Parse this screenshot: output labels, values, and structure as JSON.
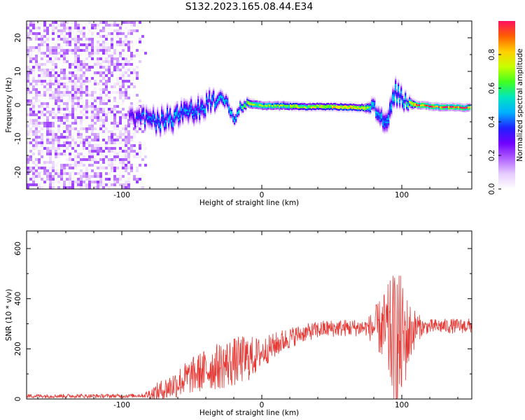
{
  "title": "S132.2023.165.08.44.E34",
  "colors": {
    "snr_line": "#e53935",
    "colormap": [
      "#ffffff",
      "#e6ccff",
      "#b060ff",
      "#7000ff",
      "#2020ff",
      "#00b0ff",
      "#00e5c0",
      "#40ff20",
      "#c8ff00",
      "#ffd000",
      "#ff6000",
      "#ff1060"
    ]
  },
  "chart_data": [
    {
      "type": "heatmap",
      "xlabel": "Height of straight line (km)",
      "ylabel": "Frequency (Hz)",
      "xlim": [
        -168,
        150
      ],
      "ylim": [
        -25,
        25
      ],
      "x_ticks": [
        "-100",
        "0",
        "100"
      ],
      "x_tick_values": [
        -100,
        0,
        100
      ],
      "y_ticks": [
        "-20",
        "-10",
        "0",
        "10",
        "20"
      ],
      "y_tick_values": [
        -20,
        -10,
        0,
        10,
        20
      ],
      "colorbar": {
        "label": "Normalized spectral amplitude",
        "range": [
          0,
          1
        ],
        "ticks": [
          "0.0",
          "0.2",
          "0.4",
          "0.6",
          "0.8"
        ],
        "tick_values": [
          0.0,
          0.2,
          0.4,
          0.6,
          0.8
        ]
      },
      "noise_region_x": [
        -168,
        -82
      ],
      "ridge": [
        {
          "x": -95,
          "freq": -4,
          "amp": 0.3,
          "spread": 2.5
        },
        {
          "x": -85,
          "freq": -4,
          "amp": 0.4,
          "spread": 2.5
        },
        {
          "x": -75,
          "freq": -5,
          "amp": 0.45,
          "spread": 3
        },
        {
          "x": -65,
          "freq": -4,
          "amp": 0.45,
          "spread": 3
        },
        {
          "x": -55,
          "freq": -3,
          "amp": 0.45,
          "spread": 3
        },
        {
          "x": -45,
          "freq": -1,
          "amp": 0.45,
          "spread": 3
        },
        {
          "x": -38,
          "freq": 1,
          "amp": 0.45,
          "spread": 2.5
        },
        {
          "x": -30,
          "freq": 1.5,
          "amp": 0.5,
          "spread": 2
        },
        {
          "x": -25,
          "freq": 0,
          "amp": 0.5,
          "spread": 1.8
        },
        {
          "x": -20,
          "freq": -4,
          "amp": 0.5,
          "spread": 1.6
        },
        {
          "x": -16,
          "freq": -1,
          "amp": 0.55,
          "spread": 1.5
        },
        {
          "x": -10,
          "freq": 0.5,
          "amp": 0.75,
          "spread": 1.2
        },
        {
          "x": 0,
          "freq": -0.3,
          "amp": 0.7,
          "spread": 1.1
        },
        {
          "x": 15,
          "freq": -0.2,
          "amp": 0.7,
          "spread": 1.1
        },
        {
          "x": 30,
          "freq": -0.5,
          "amp": 0.75,
          "spread": 1
        },
        {
          "x": 45,
          "freq": -0.5,
          "amp": 0.8,
          "spread": 1
        },
        {
          "x": 60,
          "freq": -0.6,
          "amp": 0.85,
          "spread": 1
        },
        {
          "x": 72,
          "freq": -0.8,
          "amp": 0.8,
          "spread": 1
        },
        {
          "x": 80,
          "freq": -1,
          "amp": 0.5,
          "spread": 2
        },
        {
          "x": 87,
          "freq": -6,
          "amp": 0.45,
          "spread": 3
        },
        {
          "x": 95,
          "freq": 4,
          "amp": 0.5,
          "spread": 3
        },
        {
          "x": 102,
          "freq": 1,
          "amp": 0.55,
          "spread": 2
        },
        {
          "x": 110,
          "freq": 0,
          "amp": 0.95,
          "spread": 0.9
        },
        {
          "x": 125,
          "freq": -0.5,
          "amp": 0.95,
          "spread": 0.9
        },
        {
          "x": 148,
          "freq": -0.8,
          "amp": 0.95,
          "spread": 0.9
        }
      ]
    },
    {
      "type": "line",
      "xlabel": "Height of straight line (km)",
      "ylabel": "SNR (10 * v/v)",
      "xlim": [
        -168,
        150
      ],
      "ylim": [
        0,
        670
      ],
      "x_ticks": [
        "-100",
        "0",
        "100"
      ],
      "x_tick_values": [
        -100,
        0,
        100
      ],
      "y_ticks": [
        "0",
        "200",
        "400",
        "600"
      ],
      "y_tick_values": [
        0,
        200,
        400,
        600
      ],
      "series": [
        {
          "baseline": [
            [
              -168,
              12
            ],
            [
              -150,
              12
            ],
            [
              -125,
              12
            ],
            [
              -100,
              12
            ],
            [
              -85,
              14
            ],
            [
              -75,
              25
            ],
            [
              -65,
              50
            ],
            [
              -55,
              80
            ],
            [
              -45,
              105
            ],
            [
              -35,
              125
            ],
            [
              -25,
              140
            ],
            [
              -15,
              155
            ],
            [
              -5,
              170
            ],
            [
              5,
              200
            ],
            [
              15,
              232
            ],
            [
              25,
              255
            ],
            [
              35,
              270
            ],
            [
              45,
              280
            ],
            [
              55,
              283
            ],
            [
              65,
              284
            ],
            [
              75,
              285
            ],
            [
              85,
              285
            ],
            [
              92,
              250
            ],
            [
              97,
              210
            ],
            [
              102,
              240
            ],
            [
              110,
              285
            ],
            [
              125,
              290
            ],
            [
              150,
              292
            ]
          ],
          "noise_amplitude": [
            [
              -168,
              8
            ],
            [
              -85,
              8
            ],
            [
              -75,
              40
            ],
            [
              -45,
              80
            ],
            [
              -25,
              100
            ],
            [
              -10,
              95
            ],
            [
              0,
              60
            ],
            [
              30,
              35
            ],
            [
              75,
              35
            ],
            [
              85,
              120
            ],
            [
              92,
              230
            ],
            [
              97,
              330
            ],
            [
              102,
              200
            ],
            [
              108,
              90
            ],
            [
              115,
              30
            ],
            [
              150,
              30
            ]
          ]
        }
      ]
    }
  ]
}
